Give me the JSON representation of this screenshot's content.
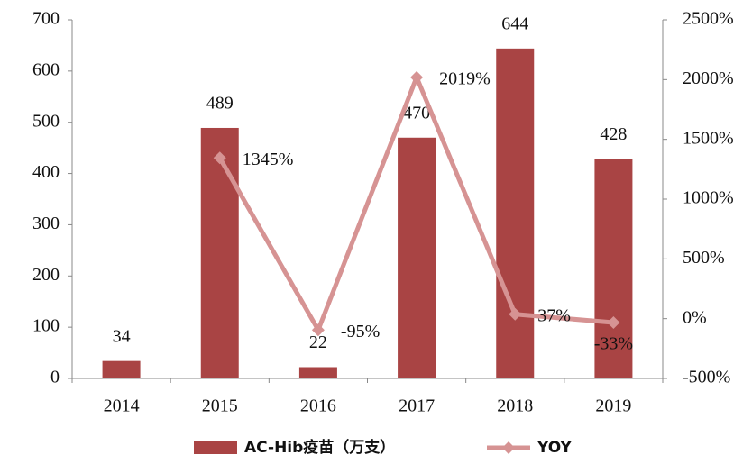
{
  "chart_data": {
    "type": "bar",
    "categories": [
      "2014",
      "2015",
      "2016",
      "2017",
      "2018",
      "2019"
    ],
    "series": [
      {
        "name": "AC-Hib疫苗（万支）",
        "type": "bar",
        "color": "#a94444",
        "values": [
          34,
          489,
          22,
          470,
          644,
          428
        ]
      },
      {
        "name": "YOY",
        "type": "line",
        "axis": "y2",
        "color": "#d69393",
        "values": [
          null,
          1345,
          -95,
          2019,
          37,
          -33
        ],
        "value_labels": [
          null,
          "1345%",
          "-95%",
          "2019%",
          "37%",
          "-33%"
        ]
      }
    ],
    "ylim": [
      0,
      700
    ],
    "yticks": [
      0,
      100,
      200,
      300,
      400,
      500,
      600,
      700
    ],
    "y2lim": [
      -500,
      2500
    ],
    "y2ticks": [
      {
        "value": -500,
        "label": "-500%"
      },
      {
        "value": 0,
        "label": "0%"
      },
      {
        "value": 500,
        "label": "500%"
      },
      {
        "value": 1000,
        "label": "1000%"
      },
      {
        "value": 1500,
        "label": "1500%"
      },
      {
        "value": 2000,
        "label": "2000%"
      },
      {
        "value": 2500,
        "label": "2500%"
      }
    ],
    "legend": "bottom"
  }
}
